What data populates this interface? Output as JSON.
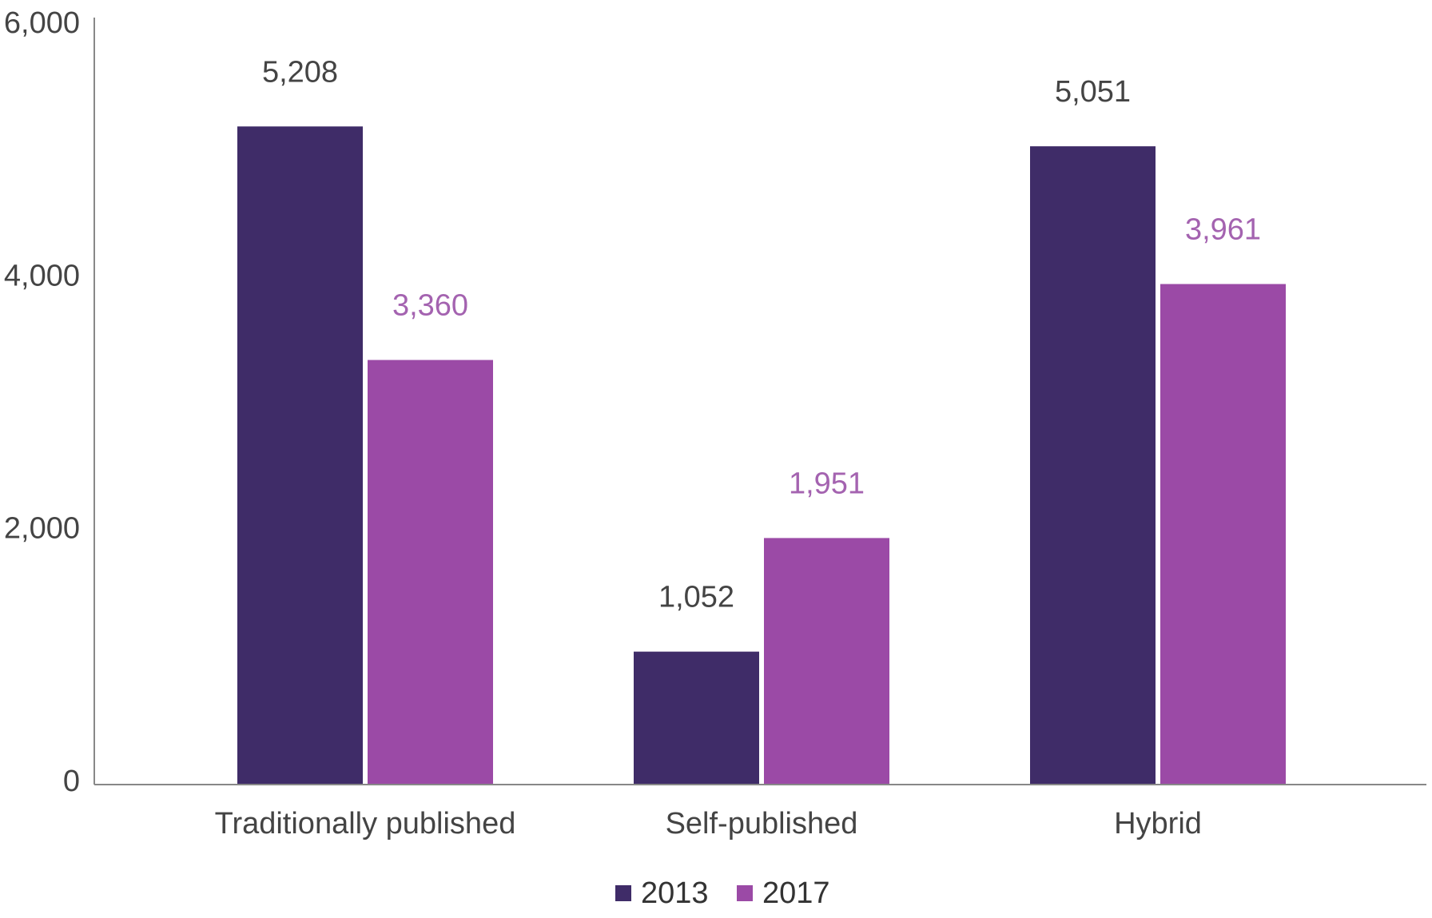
{
  "chart_data": {
    "type": "bar",
    "title": "",
    "xlabel": "",
    "ylabel": "",
    "categories": [
      "Traditionally published",
      "Self-published",
      "Hybrid"
    ],
    "series": [
      {
        "name": "2013",
        "values": [
          5208,
          1052,
          5051
        ],
        "labels": [
          "5,208",
          "1,052",
          "5,051"
        ],
        "color": "#3f2c68",
        "label_color": "#444444"
      },
      {
        "name": "2017",
        "values": [
          3360,
          1951,
          3961
        ],
        "labels": [
          "3,360",
          "1,951",
          "3,961"
        ],
        "color": "#9b4aa6",
        "label_color": "#a463b0"
      }
    ],
    "ylim": [
      0,
      6000
    ],
    "yticks": [
      0,
      2000,
      4000,
      6000
    ],
    "ytick_labels": [
      "0",
      "2,000",
      "4,000",
      "6,000"
    ],
    "grid": false,
    "legend_position": "bottom-center",
    "axis_color": "#888888"
  }
}
